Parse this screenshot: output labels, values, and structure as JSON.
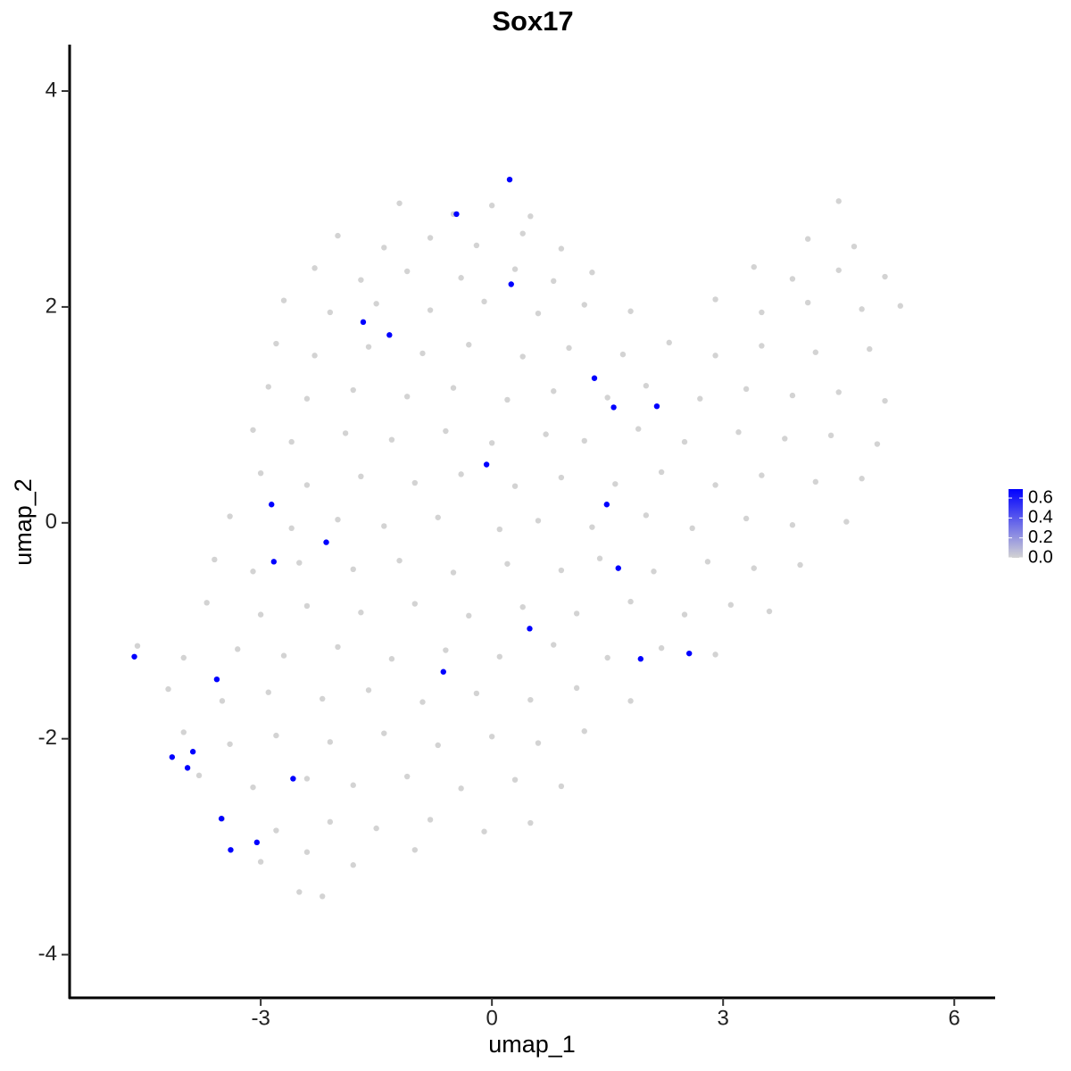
{
  "chart_data": {
    "type": "scatter",
    "title": "Sox17",
    "x_label": "umap_1",
    "y_label": "umap_2",
    "xlim": [
      -5.48,
      6.53
    ],
    "ylim": [
      -4.4,
      4.43
    ],
    "xticks": [
      -3,
      0,
      3,
      6
    ],
    "yticks": [
      -4,
      -2,
      0,
      2,
      4
    ],
    "grid": false,
    "color_low": "#d3d3d3",
    "color_high": "#0000ff",
    "clim": [
      0,
      0.69
    ],
    "colorbar_ticks": [
      {
        "value": 0,
        "label": "0.0"
      },
      {
        "value": 0.2,
        "label": "0.2"
      },
      {
        "value": 0.4,
        "label": "0.4"
      },
      {
        "value": 0.6,
        "label": "0.6"
      }
    ],
    "x": [
      -1.2,
      -0.5,
      0.0,
      0.5,
      4.5,
      -2.0,
      -1.4,
      -0.8,
      -0.2,
      0.4,
      0.9,
      4.1,
      4.7,
      -2.3,
      -1.7,
      -1.1,
      -0.4,
      0.3,
      0.8,
      1.3,
      3.4,
      3.9,
      4.5,
      5.1,
      -2.7,
      -2.1,
      -1.5,
      -0.8,
      -0.1,
      0.6,
      1.2,
      1.8,
      2.9,
      3.5,
      4.1,
      4.8,
      5.3,
      -2.8,
      -2.3,
      -1.6,
      -0.9,
      -0.3,
      0.4,
      1.0,
      1.7,
      2.3,
      2.9,
      3.5,
      4.2,
      4.9,
      -2.9,
      -2.4,
      -1.8,
      -1.1,
      -0.5,
      0.2,
      0.8,
      1.5,
      2.0,
      2.7,
      3.3,
      3.9,
      4.5,
      5.1,
      -3.1,
      -2.6,
      -1.9,
      -1.3,
      -0.6,
      0.0,
      0.7,
      1.2,
      1.9,
      2.5,
      3.2,
      3.8,
      4.4,
      5.0,
      -3.0,
      -2.4,
      -1.7,
      -1.0,
      -0.4,
      0.3,
      0.9,
      1.6,
      2.2,
      2.9,
      3.5,
      4.2,
      4.8,
      -3.4,
      -2.6,
      -2.0,
      -1.4,
      -0.7,
      0.1,
      0.6,
      1.3,
      2.0,
      2.6,
      3.3,
      3.9,
      4.6,
      -3.6,
      -3.1,
      -2.5,
      -1.8,
      -1.2,
      -0.5,
      0.2,
      0.9,
      1.4,
      2.1,
      2.8,
      3.4,
      4.0,
      -3.7,
      -3.0,
      -2.4,
      -1.7,
      -1.0,
      -0.3,
      0.4,
      1.1,
      1.8,
      2.5,
      3.1,
      3.6,
      -4.6,
      -4.0,
      -3.3,
      -2.7,
      -2.0,
      -1.3,
      -0.6,
      0.1,
      0.8,
      1.5,
      2.2,
      2.9,
      -4.2,
      -3.5,
      -2.9,
      -2.2,
      -1.6,
      -0.9,
      -0.2,
      0.5,
      1.1,
      1.8,
      -4.0,
      -3.4,
      -2.8,
      -2.1,
      -1.4,
      -0.7,
      0.0,
      0.6,
      1.2,
      -3.8,
      -3.1,
      -2.4,
      -1.8,
      -1.1,
      -0.4,
      0.3,
      0.9,
      -3.5,
      -2.8,
      -2.1,
      -1.5,
      -0.8,
      -0.1,
      0.5,
      -3.0,
      -2.4,
      -1.8,
      -1.0,
      -2.5,
      -2.2,
      0.23,
      -0.46,
      0.25,
      -1.67,
      -1.33,
      1.33,
      1.58,
      2.14,
      -0.07,
      -2.86,
      1.49,
      -2.15,
      -2.83,
      1.64,
      0.49,
      2.56,
      1.93,
      -0.63,
      -4.64,
      -3.57,
      -4.15,
      -3.88,
      -3.95,
      -2.58,
      -3.51,
      -3.05,
      -3.39
    ],
    "y": [
      2.96,
      2.86,
      2.94,
      2.84,
      2.98,
      2.66,
      2.55,
      2.64,
      2.57,
      2.68,
      2.54,
      2.63,
      2.56,
      2.36,
      2.25,
      2.33,
      2.27,
      2.35,
      2.24,
      2.32,
      2.37,
      2.26,
      2.34,
      2.28,
      2.06,
      1.95,
      2.03,
      1.97,
      2.05,
      1.94,
      2.02,
      1.96,
      2.07,
      1.95,
      2.04,
      1.98,
      2.01,
      1.66,
      1.55,
      1.63,
      1.57,
      1.65,
      1.54,
      1.62,
      1.56,
      1.67,
      1.55,
      1.64,
      1.58,
      1.61,
      1.26,
      1.15,
      1.23,
      1.17,
      1.25,
      1.14,
      1.22,
      1.16,
      1.27,
      1.15,
      1.24,
      1.18,
      1.21,
      1.13,
      0.86,
      0.75,
      0.83,
      0.77,
      0.85,
      0.74,
      0.82,
      0.76,
      0.87,
      0.75,
      0.84,
      0.78,
      0.81,
      0.73,
      0.46,
      0.35,
      0.43,
      0.37,
      0.45,
      0.34,
      0.42,
      0.36,
      0.47,
      0.35,
      0.44,
      0.38,
      0.41,
      0.06,
      -0.05,
      0.03,
      -0.03,
      0.05,
      -0.06,
      0.02,
      -0.04,
      0.07,
      -0.05,
      0.04,
      -0.02,
      0.01,
      -0.34,
      -0.45,
      -0.37,
      -0.43,
      -0.35,
      -0.46,
      -0.38,
      -0.44,
      -0.33,
      -0.45,
      -0.36,
      -0.42,
      -0.39,
      -0.74,
      -0.85,
      -0.77,
      -0.83,
      -0.75,
      -0.86,
      -0.78,
      -0.84,
      -0.73,
      -0.85,
      -0.76,
      -0.82,
      -1.14,
      -1.25,
      -1.17,
      -1.23,
      -1.15,
      -1.26,
      -1.18,
      -1.24,
      -1.13,
      -1.25,
      -1.16,
      -1.22,
      -1.54,
      -1.65,
      -1.57,
      -1.63,
      -1.55,
      -1.66,
      -1.58,
      -1.64,
      -1.53,
      -1.65,
      -1.94,
      -2.05,
      -1.97,
      -2.03,
      -1.95,
      -2.06,
      -1.98,
      -2.04,
      -1.93,
      -2.34,
      -2.45,
      -2.37,
      -2.43,
      -2.35,
      -2.46,
      -2.38,
      -2.44,
      -2.74,
      -2.85,
      -2.77,
      -2.83,
      -2.75,
      -2.86,
      -2.78,
      -3.14,
      -3.05,
      -3.17,
      -3.03,
      -3.42,
      -3.46,
      3.18,
      2.86,
      2.21,
      1.86,
      1.74,
      1.34,
      1.07,
      1.08,
      0.54,
      0.17,
      0.17,
      -0.18,
      -0.36,
      -0.42,
      -0.98,
      -1.21,
      -1.26,
      -1.38,
      -1.24,
      -1.45,
      -2.17,
      -2.12,
      -2.27,
      -2.37,
      -2.74,
      -2.96,
      -3.03
    ],
    "values": [
      0,
      0,
      0,
      0,
      0,
      0,
      0,
      0,
      0,
      0,
      0,
      0,
      0,
      0,
      0,
      0,
      0,
      0,
      0,
      0,
      0,
      0,
      0,
      0,
      0,
      0,
      0,
      0,
      0,
      0,
      0,
      0,
      0,
      0,
      0,
      0,
      0,
      0,
      0,
      0,
      0,
      0,
      0,
      0,
      0,
      0,
      0,
      0,
      0,
      0,
      0,
      0,
      0,
      0,
      0,
      0,
      0,
      0,
      0,
      0,
      0,
      0,
      0,
      0,
      0,
      0,
      0,
      0,
      0,
      0,
      0,
      0,
      0,
      0,
      0,
      0,
      0,
      0,
      0,
      0,
      0,
      0,
      0,
      0,
      0,
      0,
      0,
      0,
      0,
      0,
      0,
      0,
      0,
      0,
      0,
      0,
      0,
      0,
      0,
      0,
      0,
      0,
      0,
      0,
      0,
      0,
      0,
      0,
      0,
      0,
      0,
      0,
      0,
      0,
      0,
      0,
      0,
      0,
      0,
      0,
      0,
      0,
      0,
      0,
      0,
      0,
      0,
      0,
      0,
      0,
      0,
      0,
      0,
      0,
      0,
      0,
      0,
      0,
      0,
      0,
      0,
      0,
      0,
      0,
      0,
      0,
      0,
      0,
      0,
      0,
      0,
      0,
      0,
      0,
      0,
      0,
      0,
      0,
      0,
      0,
      0,
      0,
      0,
      0,
      0,
      0,
      0,
      0,
      0,
      0,
      0,
      0,
      0,
      0,
      0,
      0,
      0,
      0,
      0,
      0,
      0,
      0.69,
      0.69,
      0.69,
      0.69,
      0.69,
      0.69,
      0.69,
      0.69,
      0.69,
      0.69,
      0.69,
      0.69,
      0.69,
      0.69,
      0.69,
      0.69,
      0.69,
      0.69,
      0.69,
      0.69,
      0.69,
      0.69,
      0.69,
      0.69,
      0.69,
      0.69,
      0.69
    ]
  }
}
